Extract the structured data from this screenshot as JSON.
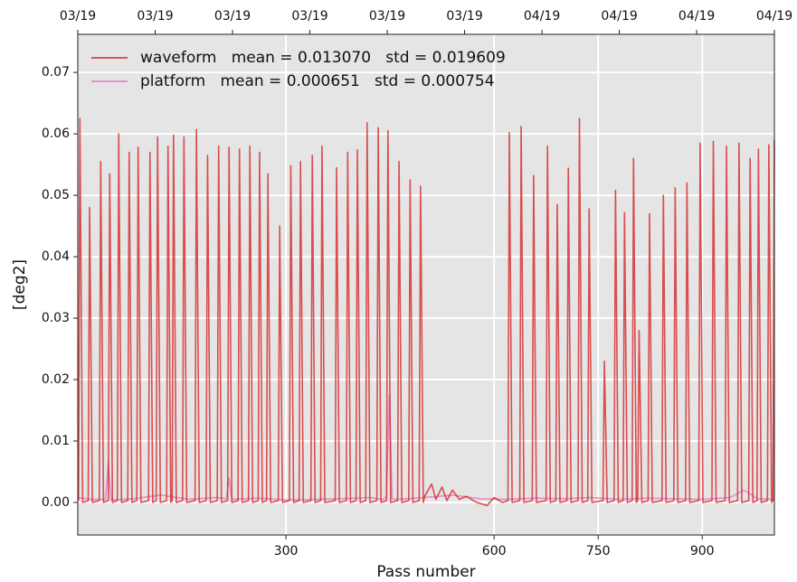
{
  "chart_data": {
    "type": "line",
    "xlabel": "Pass number",
    "ylabel": "[deg2]",
    "xlim": [
      0,
      1004
    ],
    "ylim": [
      -0.0053,
      0.0762
    ],
    "xticks": [
      300,
      600,
      750,
      900
    ],
    "yticks": [
      {
        "value": 0,
        "label": "0.00"
      },
      0.01,
      0.02,
      0.03,
      0.04,
      0.05,
      0.06,
      0.07
    ],
    "x2ticks": [
      {
        "value": 0,
        "label": "03/19"
      },
      {
        "value": 111.5,
        "label": "03/19"
      },
      {
        "value": 223,
        "label": "03/19"
      },
      {
        "value": 334.5,
        "label": "03/19"
      },
      {
        "value": 446,
        "label": "03/19"
      },
      {
        "value": 557.5,
        "label": "03/19"
      },
      {
        "value": 669,
        "label": "04/19"
      },
      {
        "value": 780.5,
        "label": "04/19"
      },
      {
        "value": 892,
        "label": "04/19"
      },
      {
        "value": 1004,
        "label": "04/19"
      }
    ],
    "grid": true,
    "legend": "upper left",
    "series": [
      {
        "name": "waveform   mean = 0.013070   std = 0.019609",
        "color": "#d62728",
        "x": [
          1,
          3,
          7,
          15,
          17,
          21,
          31,
          33,
          37,
          44,
          46,
          50,
          57,
          59,
          63,
          72,
          74,
          78,
          85,
          87,
          91,
          102,
          104,
          108,
          113,
          115,
          119,
          128,
          130,
          134,
          136,
          138,
          142,
          151,
          153,
          157,
          169,
          171,
          175,
          185,
          187,
          191,
          201,
          203,
          207,
          216,
          218,
          222,
          231,
          233,
          237,
          246,
          248,
          252,
          260,
          262,
          266,
          272,
          274,
          278,
          289,
          291,
          295,
          305,
          307,
          311,
          319,
          321,
          325,
          336,
          338,
          342,
          350,
          352,
          356,
          371,
          373,
          377,
          387,
          389,
          393,
          401,
          403,
          407,
          415,
          417,
          421,
          431,
          433,
          437,
          445,
          447,
          451,
          461,
          463,
          467,
          477,
          479,
          483,
          492,
          494,
          498,
          500,
          510,
          516,
          525,
          532,
          540,
          550,
          560,
          575,
          590,
          600,
          612,
          620,
          622,
          626,
          637,
          639,
          643,
          655,
          657,
          661,
          675,
          677,
          681,
          689,
          691,
          695,
          705,
          707,
          711,
          721,
          723,
          727,
          735,
          737,
          741,
          757,
          759,
          763,
          773,
          775,
          779,
          786,
          788,
          792,
          799,
          801,
          805,
          807,
          809,
          813,
          822,
          824,
          828,
          842,
          844,
          848,
          859,
          861,
          865,
          876,
          878,
          882,
          895,
          897,
          901,
          914,
          916,
          920,
          933,
          935,
          939,
          951,
          953,
          957,
          967,
          969,
          973,
          979,
          981,
          985,
          994,
          996,
          1000,
          1002,
          1004
        ],
        "values": [
          0.0003,
          0.0625,
          0,
          0.0003,
          0.048,
          0,
          0.0003,
          0.0555,
          0,
          0.0003,
          0.0535,
          0,
          0.0003,
          0.06,
          0,
          0.0003,
          0.057,
          0,
          0.0003,
          0.0578,
          0,
          0.0003,
          0.057,
          0,
          0.0003,
          0.0595,
          0,
          0.0003,
          0.058,
          0,
          0.0003,
          0.0598,
          0,
          0.0003,
          0.0595,
          0,
          0.0003,
          0.0607,
          0,
          0.0003,
          0.0565,
          0,
          0.0003,
          0.058,
          0,
          0.0003,
          0.0578,
          0,
          0.0003,
          0.0575,
          0,
          0.0003,
          0.058,
          0,
          0.0003,
          0.057,
          0,
          0.0003,
          0.0535,
          0,
          0.0003,
          0.045,
          0,
          0.0003,
          0.0548,
          0,
          0.0003,
          0.0555,
          0,
          0.0003,
          0.0565,
          0,
          0.0003,
          0.058,
          0,
          0.0003,
          0.0545,
          0,
          0.0003,
          0.057,
          0,
          0.0003,
          0.0574,
          0,
          0.0003,
          0.0618,
          0,
          0.0003,
          0.061,
          0,
          0.0003,
          0.0605,
          0,
          0.0003,
          0.0555,
          0,
          0.0003,
          0.0525,
          0,
          0.0003,
          0.0515,
          0,
          0.001,
          0.003,
          0.0005,
          0.0025,
          0.0003,
          0.002,
          0.0005,
          0.001,
          0,
          -0.0005,
          0.0008,
          0,
          0.0003,
          0.0602,
          0,
          0.0003,
          0.0612,
          0,
          0.0003,
          0.0532,
          0,
          0.0003,
          0.058,
          0,
          0.0003,
          0.0485,
          0,
          0.0003,
          0.0544,
          0,
          0.0003,
          0.0625,
          0,
          0.0003,
          0.0478,
          0,
          0.0003,
          0.023,
          0,
          0.0003,
          0.0508,
          0,
          0.0003,
          0.0472,
          0,
          0.0003,
          0.056,
          0,
          0.0003,
          0.028,
          0,
          0.0003,
          0.047,
          0,
          0.0003,
          0.05,
          0,
          0.0003,
          0.0512,
          0,
          0.0003,
          0.052,
          0,
          0.0003,
          0.0585,
          0,
          0.0003,
          0.0588,
          0,
          0.0003,
          0.058,
          0,
          0.0003,
          0.0585,
          0,
          0.0003,
          0.056,
          0,
          0.0003,
          0.0575,
          0,
          0.0003,
          0.0582,
          0,
          0.0003,
          0.059
        ]
      },
      {
        "name": "platform   mean = 0.000651   std = 0.000754",
        "color": "#e377c2",
        "x": [
          0,
          20,
          40,
          44,
          48,
          80,
          120,
          160,
          200,
          214,
          218,
          222,
          260,
          300,
          340,
          380,
          420,
          440,
          445,
          449,
          453,
          460,
          500,
          540,
          580,
          620,
          660,
          700,
          740,
          780,
          820,
          860,
          900,
          940,
          960,
          980,
          1004
        ],
        "values": [
          0.0008,
          0.0005,
          0.0005,
          0.0065,
          0.0004,
          0.0006,
          0.0012,
          0.0005,
          0.0008,
          0.0006,
          0.004,
          0.0005,
          0.0007,
          0.0004,
          0.0005,
          0.0006,
          0.0008,
          0.0005,
          0.001,
          0.0175,
          0.0006,
          0.0005,
          0.0008,
          0.0012,
          0.0006,
          0.0005,
          0.0007,
          0.0006,
          0.0008,
          0.0005,
          0.0007,
          0.0006,
          0.0005,
          0.0008,
          0.002,
          0.0006,
          0.0005
        ]
      }
    ]
  }
}
